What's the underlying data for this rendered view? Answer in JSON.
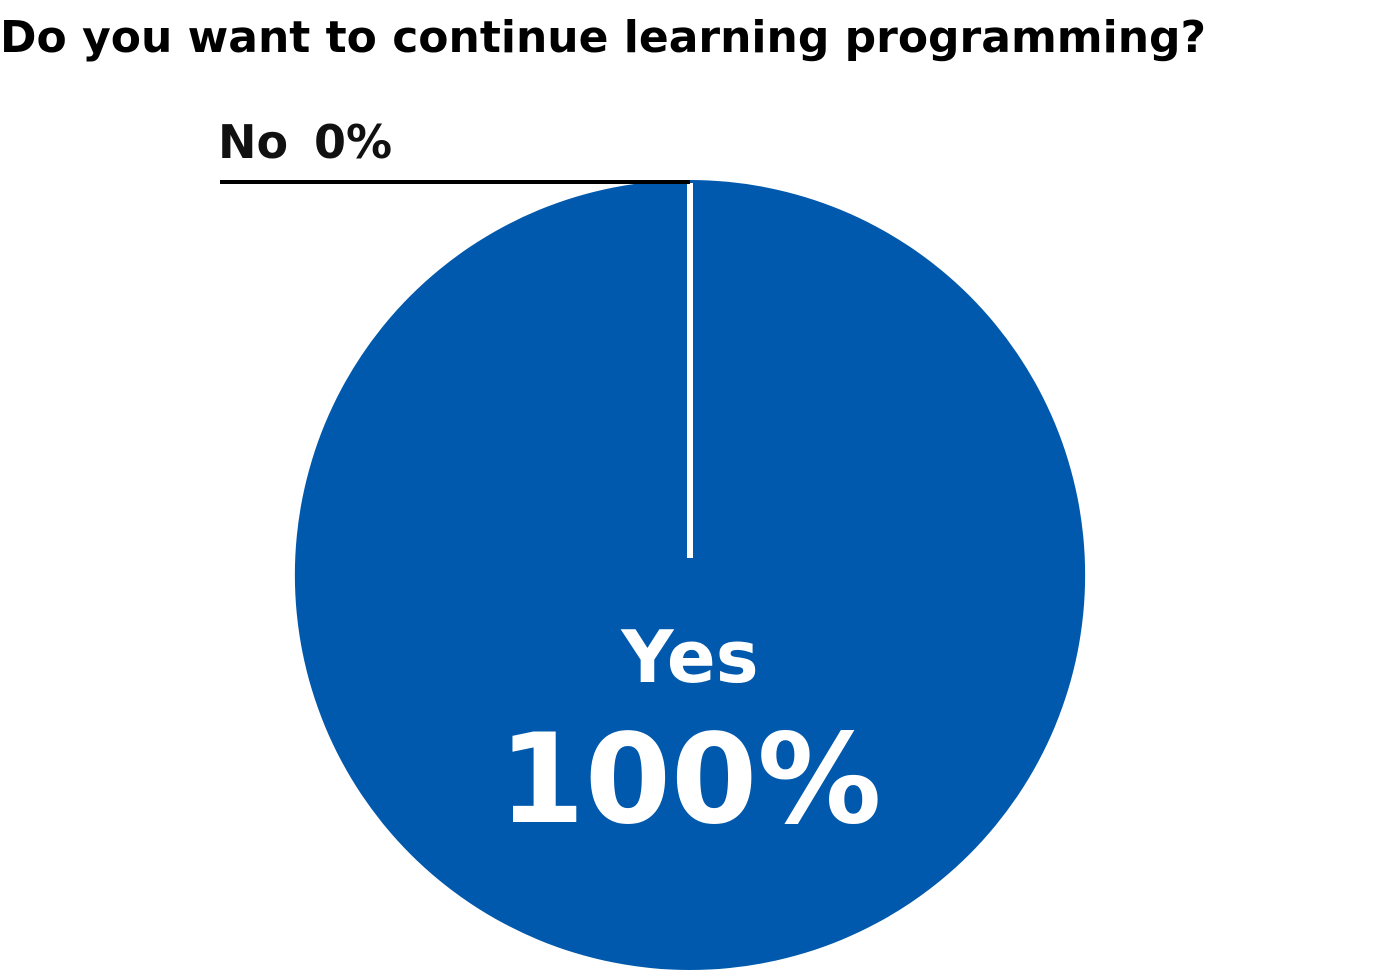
{
  "chart_data": {
    "type": "pie",
    "title": "Do you want to continue learning programming?",
    "categories": [
      "Yes",
      "No"
    ],
    "values": [
      100,
      0
    ],
    "value_labels": [
      "100%",
      "0%"
    ],
    "colors": [
      "#0059ac",
      "#0059ac"
    ]
  }
}
